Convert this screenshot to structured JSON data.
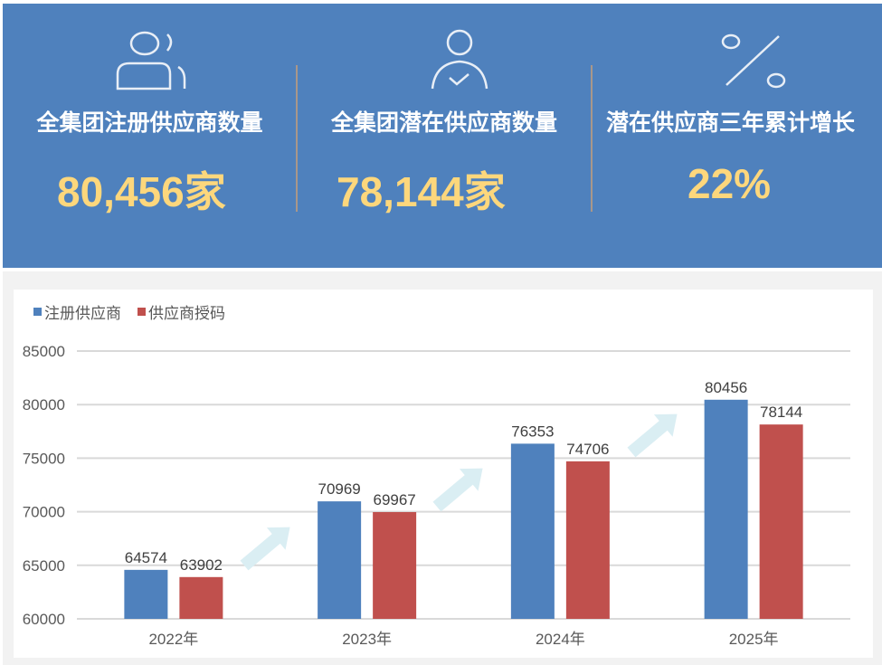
{
  "header": {
    "background": "#4f81bd",
    "kpis": [
      {
        "icon": "users-icon",
        "title": "全集团注册供应商数量",
        "value": "80,456家"
      },
      {
        "icon": "user-check-icon",
        "title": "全集团潜在供应商数量",
        "value": "78,144家"
      },
      {
        "icon": "percent-icon",
        "title": "潜在供应商三年累计增长",
        "value": "22%"
      }
    ],
    "value_color": "#fdd77c"
  },
  "chart_data": {
    "type": "bar",
    "title": "",
    "categories": [
      "2022年",
      "2023年",
      "2024年",
      "2025年"
    ],
    "series": [
      {
        "name": "注册供应商",
        "color": "#4f81bd",
        "values": [
          64574,
          70969,
          76353,
          80456
        ]
      },
      {
        "name": "供应商授码",
        "color": "#c0504d",
        "values": [
          63902,
          69967,
          74706,
          78144
        ]
      }
    ],
    "data_labels": true,
    "xlabel": "",
    "ylabel": "",
    "ylim": [
      60000,
      85000
    ],
    "yticks": [
      "60000",
      "65000",
      "70000",
      "75000",
      "80000",
      "85000"
    ],
    "grid": true,
    "legend_position": "top-left",
    "annotations": [
      "growth arrows between year groups"
    ]
  }
}
